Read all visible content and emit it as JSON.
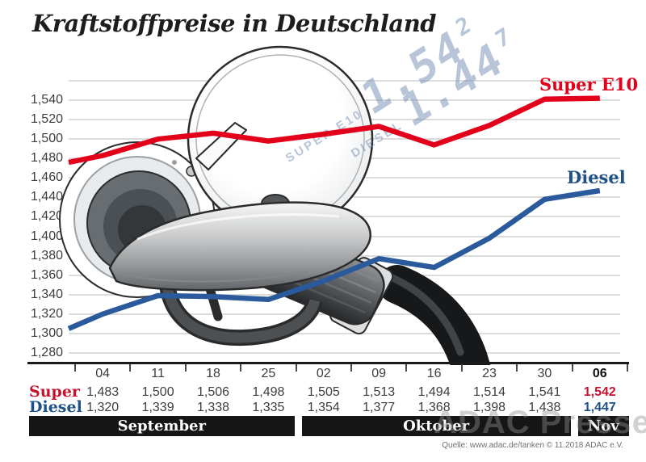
{
  "title": "Kraftstoffpreise in Deutschland",
  "chart_data": {
    "type": "line",
    "x_dates": [
      "04",
      "11",
      "18",
      "25",
      "02",
      "09",
      "16",
      "23",
      "30",
      "06"
    ],
    "months": [
      {
        "label": "September",
        "start_col": 0,
        "end_col": 3
      },
      {
        "label": "Oktober",
        "start_col": 4,
        "end_col": 8
      },
      {
        "label": "Nov",
        "start_col": 9,
        "end_col": 9
      }
    ],
    "y_ticks": [
      1540,
      1520,
      1500,
      1480,
      1460,
      1440,
      1420,
      1400,
      1380,
      1360,
      1340,
      1320,
      1300,
      1280
    ],
    "ylim": [
      1280,
      1560
    ],
    "grid": "horizontal",
    "series": [
      {
        "name": "Super",
        "label": "Super E10",
        "color": "#e2001a",
        "values": [
          1483,
          1500,
          1506,
          1498,
          1505,
          1513,
          1494,
          1514,
          1541,
          1542
        ],
        "left_edge_value": 1476
      },
      {
        "name": "Diesel",
        "label": "Diesel",
        "color": "#2a5a9b",
        "values": [
          1320,
          1339,
          1338,
          1335,
          1354,
          1377,
          1368,
          1398,
          1438,
          1447
        ],
        "left_edge_value": 1305
      }
    ]
  },
  "table": {
    "row_headers": [
      "Super",
      "Diesel"
    ],
    "super_values": [
      "1,483",
      "1,500",
      "1,506",
      "1,498",
      "1,505",
      "1,513",
      "1,494",
      "1,514",
      "1,541",
      "1,542"
    ],
    "diesel_values": [
      "1,320",
      "1,339",
      "1,338",
      "1,335",
      "1,354",
      "1,377",
      "1,368",
      "1,398",
      "1,438",
      "1,447"
    ],
    "bold_last_column": true
  },
  "lcd": {
    "super_label": "SUPER E10",
    "super_digits": "1.54",
    "super_sup": "2",
    "diesel_label": "DIESEL",
    "diesel_digits": "1.44",
    "diesel_sup": "7"
  },
  "source": "Quelle: www.adac.de/tanken    © 11.2018    ADAC e.V.",
  "watermark": "ADAC Presse",
  "colors": {
    "super_line": "#e2001a",
    "diesel_line": "#2a5a9b",
    "super_header": "#c41430",
    "diesel_header": "#1f5086",
    "grid": "#dcdcdc",
    "axis": "#1a1a1a",
    "bar_background": "#161616",
    "bar_text": "#ffffff",
    "lcd_blue": "#7d96b9",
    "source_text": "#6f6f6f"
  }
}
